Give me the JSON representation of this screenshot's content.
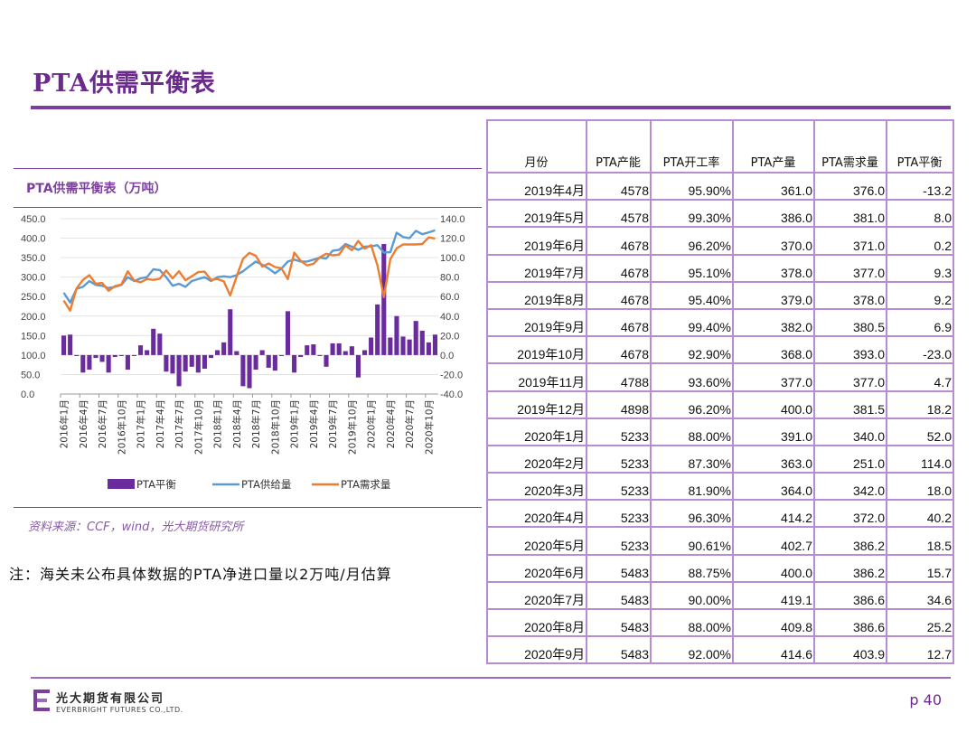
{
  "page": {
    "title": "PTA供需平衡表",
    "note": "注：海关未公布具体数据的PTA净进口量以2万吨/月估算",
    "source": "资料来源：CCF，wind，光大期货研究所",
    "company_cn": "光大期货有限公司",
    "company_en": "EVERBRIGHT FUTURES CO.,LTD.",
    "page_number": "p 40"
  },
  "colors": {
    "accent": "#7d3f9e",
    "balance": "#6a2c9c",
    "supply": "#5b9bd5",
    "demand": "#ed7d31",
    "table_border": "#b58dd0"
  },
  "chart_data": {
    "type": "bar+line",
    "title": "PTA供需平衡表（万吨）",
    "x_tick_labels": [
      "2016年1月",
      "2016年4月",
      "2016年7月",
      "2016年10月",
      "2017年1月",
      "2017年4月",
      "2017年7月",
      "2017年10月",
      "2018年1月",
      "2018年4月",
      "2018年7月",
      "2018年10月",
      "2019年1月",
      "2019年4月",
      "2019年7月",
      "2019年10月",
      "2020年1月",
      "2020年4月",
      "2020年7月",
      "2020年10月"
    ],
    "x_start": "2016-01",
    "n_months": 59,
    "y_left": {
      "ticks": [
        "0.0",
        "50.0",
        "100.0",
        "150.0",
        "200.0",
        "250.0",
        "300.0",
        "350.0",
        "400.0",
        "450.0"
      ],
      "range": [
        0,
        450
      ]
    },
    "y_right": {
      "ticks": [
        "-40.0",
        "-20.0",
        "0.0",
        "20.0",
        "40.0",
        "60.0",
        "80.0",
        "100.0",
        "120.0",
        "140.0"
      ],
      "range": [
        -40,
        140
      ]
    },
    "legend": [
      "PTA平衡",
      "PTA供给量",
      "PTA需求量"
    ],
    "series": [
      {
        "name": "PTA平衡",
        "axis": "right",
        "type": "bar",
        "values": [
          20,
          21,
          -1,
          -18,
          -15,
          -3,
          -7,
          -18,
          -2,
          -1,
          -15,
          -1,
          10,
          5,
          27,
          22,
          -17,
          -19,
          -32,
          -17,
          -12,
          -18,
          -14,
          -3,
          5,
          13,
          47,
          4,
          -32,
          -34,
          -15,
          5,
          -13,
          -16,
          -1,
          45,
          -18,
          -2,
          10,
          11,
          -1,
          -12,
          12,
          12,
          4,
          9,
          -23,
          5,
          18,
          52,
          114,
          18,
          40,
          19,
          16,
          35,
          25,
          13,
          21
        ]
      },
      {
        "name": "PTA供给量",
        "axis": "left",
        "type": "line",
        "values": [
          260,
          235,
          270,
          275,
          290,
          280,
          278,
          272,
          275,
          280,
          300,
          290,
          297,
          300,
          320,
          318,
          300,
          278,
          283,
          275,
          290,
          295,
          300,
          290,
          300,
          302,
          300,
          305,
          315,
          328,
          340,
          332,
          322,
          310,
          322,
          340,
          345,
          340,
          340,
          345,
          350,
          348,
          368,
          370,
          385,
          378,
          370,
          378,
          379,
          382,
          363,
          364,
          414,
          403,
          400,
          419,
          410,
          415,
          420
        ]
      },
      {
        "name": "PTA需求量",
        "axis": "left",
        "type": "line",
        "values": [
          240,
          214,
          271,
          293,
          305,
          283,
          285,
          265,
          277,
          281,
          315,
          291,
          287,
          295,
          293,
          296,
          317,
          297,
          315,
          292,
          302,
          313,
          314,
          293,
          295,
          289,
          253,
          301,
          347,
          362,
          355,
          327,
          335,
          326,
          323,
          295,
          363,
          342,
          330,
          334,
          351,
          360,
          356,
          358,
          381,
          369,
          393,
          373,
          382,
          330,
          249,
          346,
          374,
          384,
          384,
          384,
          385,
          402,
          399
        ]
      }
    ]
  },
  "table": {
    "headers": [
      "月份",
      "PTA产能",
      "PTA开工率",
      "PTA产量",
      "PTA需求量",
      "PTA平衡"
    ],
    "rows": [
      [
        "2019年4月",
        "4578",
        "95.90%",
        "361.0",
        "376.0",
        "-13.2"
      ],
      [
        "2019年5月",
        "4578",
        "99.30%",
        "386.0",
        "381.0",
        "8.0"
      ],
      [
        "2019年6月",
        "4678",
        "96.20%",
        "370.0",
        "371.0",
        "0.2"
      ],
      [
        "2019年7月",
        "4678",
        "95.10%",
        "378.0",
        "377.0",
        "9.3"
      ],
      [
        "2019年8月",
        "4678",
        "95.40%",
        "379.0",
        "378.0",
        "9.2"
      ],
      [
        "2019年9月",
        "4678",
        "99.40%",
        "382.0",
        "380.5",
        "6.9"
      ],
      [
        "2019年10月",
        "4678",
        "92.90%",
        "368.0",
        "393.0",
        "-23.0"
      ],
      [
        "2019年11月",
        "4788",
        "93.60%",
        "377.0",
        "377.0",
        "4.7"
      ],
      [
        "2019年12月",
        "4898",
        "96.20%",
        "400.0",
        "381.5",
        "18.2"
      ],
      [
        "2020年1月",
        "5233",
        "88.00%",
        "391.0",
        "340.0",
        "52.0"
      ],
      [
        "2020年2月",
        "5233",
        "87.30%",
        "363.0",
        "251.0",
        "114.0"
      ],
      [
        "2020年3月",
        "5233",
        "81.90%",
        "364.0",
        "342.0",
        "18.0"
      ],
      [
        "2020年4月",
        "5233",
        "96.30%",
        "414.2",
        "372.0",
        "40.2"
      ],
      [
        "2020年5月",
        "5233",
        "90.61%",
        "402.7",
        "386.2",
        "18.5"
      ],
      [
        "2020年6月",
        "5483",
        "88.75%",
        "400.0",
        "386.2",
        "15.7"
      ],
      [
        "2020年7月",
        "5483",
        "90.00%",
        "419.1",
        "386.6",
        "34.6"
      ],
      [
        "2020年8月",
        "5483",
        "88.00%",
        "409.8",
        "386.6",
        "25.2"
      ],
      [
        "2020年9月",
        "5483",
        "92.00%",
        "414.6",
        "403.9",
        "12.7"
      ]
    ]
  }
}
